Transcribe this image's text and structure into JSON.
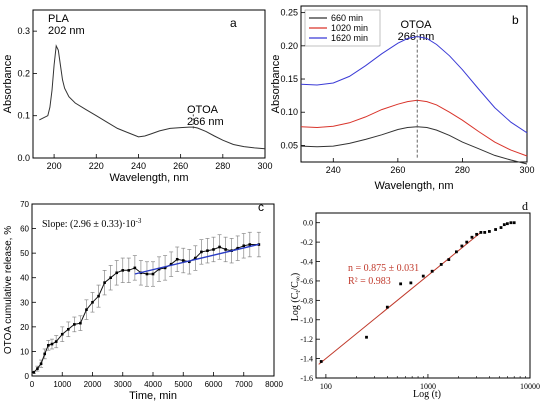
{
  "chart_data": [
    {
      "panel": "a",
      "type": "line",
      "xlabel": "Wavelength, nm",
      "ylabel": "Absorbance",
      "xlim": [
        190,
        300
      ],
      "ylim": [
        0.0,
        0.35
      ],
      "xticks": [
        "200",
        "220",
        "240",
        "260",
        "280",
        "300"
      ],
      "yticks": [
        "0.0",
        "0.1",
        "0.2",
        "0.3"
      ],
      "series": [
        {
          "color": "#333333",
          "x": [
            193,
            195,
            197,
            198,
            199,
            200,
            201,
            202,
            203,
            204,
            205,
            207,
            210,
            215,
            220,
            225,
            230,
            235,
            240,
            243,
            246,
            250,
            255,
            260,
            264,
            266,
            268,
            272,
            276,
            280,
            285,
            290,
            295,
            300
          ],
          "y": [
            0.09,
            0.095,
            0.1,
            0.12,
            0.16,
            0.22,
            0.265,
            0.255,
            0.22,
            0.185,
            0.165,
            0.145,
            0.13,
            0.115,
            0.1,
            0.085,
            0.07,
            0.06,
            0.05,
            0.052,
            0.057,
            0.064,
            0.07,
            0.072,
            0.073,
            0.073,
            0.071,
            0.063,
            0.052,
            0.042,
            0.032,
            0.027,
            0.024,
            0.022
          ]
        }
      ],
      "annotations": [
        {
          "text": "PLA",
          "x": 202
        },
        {
          "text": "202 nm",
          "x": 202
        },
        {
          "text": "OTOA",
          "x": 266
        },
        {
          "text": "266 nm",
          "x": 266
        }
      ],
      "marker_line_x": 266
    },
    {
      "panel": "b",
      "type": "line",
      "xlabel": "Wavelength, nm",
      "ylabel": "Absorbance",
      "xlim": [
        230,
        300
      ],
      "ylim": [
        0.025,
        0.26
      ],
      "xticks": [
        "240",
        "260",
        "280",
        "300"
      ],
      "yticks": [
        "0.05",
        "0.10",
        "0.15",
        "0.20",
        "0.25"
      ],
      "legend_position": "top-left",
      "series": [
        {
          "name": "660 min",
          "color": "#333333",
          "x": [
            230,
            235,
            240,
            245,
            250,
            255,
            260,
            263,
            266,
            269,
            272,
            276,
            280,
            285,
            290,
            295,
            300
          ],
          "y": [
            0.049,
            0.048,
            0.049,
            0.053,
            0.059,
            0.066,
            0.074,
            0.077,
            0.078,
            0.077,
            0.073,
            0.065,
            0.055,
            0.045,
            0.035,
            0.028,
            0.022
          ]
        },
        {
          "name": "1020 min",
          "color": "#d9342b",
          "x": [
            230,
            235,
            240,
            245,
            250,
            255,
            260,
            263,
            266,
            269,
            272,
            276,
            280,
            285,
            290,
            295,
            300
          ],
          "y": [
            0.078,
            0.077,
            0.079,
            0.084,
            0.093,
            0.104,
            0.112,
            0.116,
            0.118,
            0.116,
            0.111,
            0.1,
            0.088,
            0.071,
            0.055,
            0.043,
            0.034
          ]
        },
        {
          "name": "1620 min",
          "color": "#3b3bd6",
          "x": [
            230,
            235,
            240,
            245,
            250,
            255,
            260,
            263,
            266,
            269,
            272,
            276,
            280,
            285,
            290,
            295,
            300
          ],
          "y": [
            0.142,
            0.141,
            0.144,
            0.154,
            0.17,
            0.188,
            0.204,
            0.211,
            0.214,
            0.211,
            0.202,
            0.185,
            0.164,
            0.135,
            0.107,
            0.085,
            0.069
          ]
        }
      ],
      "annotations": [
        {
          "text": "OTOA",
          "x": 266
        },
        {
          "text": "266 nm",
          "x": 266
        }
      ],
      "marker_line_x": 266
    },
    {
      "panel": "c",
      "type": "line",
      "xlabel": "Time, min",
      "ylabel": "OTOA cumulative release, %",
      "xlim": [
        0,
        8000
      ],
      "ylim": [
        0,
        70
      ],
      "xticks": [
        "0",
        "1000",
        "2000",
        "3000",
        "4000",
        "5000",
        "6000",
        "7000",
        "8000"
      ],
      "yticks": [
        "0",
        "10",
        "20",
        "30",
        "40",
        "50",
        "60",
        "70"
      ],
      "slope_text": "Slope: (2.96 ± 0.33)·10",
      "slope_exponent": "-3",
      "series": [
        {
          "color": "#111111",
          "x": [
            60,
            180,
            300,
            420,
            540,
            660,
            800,
            1000,
            1200,
            1400,
            1600,
            1800,
            2000,
            2200,
            2400,
            2600,
            2800,
            3000,
            3200,
            3400,
            3600,
            3800,
            4000,
            4200,
            4400,
            4600,
            4800,
            5000,
            5200,
            5400,
            5600,
            5800,
            6000,
            6200,
            6400,
            6600,
            6800,
            7000,
            7200,
            7500
          ],
          "y": [
            1.5,
            3,
            5,
            9,
            12.5,
            13,
            14,
            17,
            19,
            21,
            21.5,
            27,
            30,
            32.5,
            38,
            40,
            42,
            43,
            43,
            44,
            42,
            41.5,
            41.5,
            43.5,
            44,
            45.5,
            47.5,
            47,
            46.5,
            48,
            50.5,
            51,
            51.5,
            52.5,
            51.5,
            51,
            52,
            53,
            53.5,
            53.5
          ],
          "error": [
            0.5,
            1,
            1.5,
            2,
            2,
            2,
            2.5,
            3,
            3,
            3,
            3,
            4,
            4,
            4.5,
            5,
            5,
            5,
            5,
            5,
            5,
            5,
            5,
            5,
            5,
            5,
            5,
            5,
            5,
            5,
            5,
            5,
            5,
            5,
            5,
            5,
            5,
            5,
            5,
            5,
            5
          ]
        }
      ],
      "fit_line": {
        "color": "#2a3cc4",
        "x": [
          3400,
          7500
        ],
        "y": [
          41.5,
          53.6
        ]
      }
    },
    {
      "panel": "d",
      "type": "scatter",
      "xlabel": "Log (t)",
      "ylabel": "Log (Ct/C∞)",
      "xscale": "log",
      "xlim": [
        80,
        10000
      ],
      "ylim": [
        -1.6,
        0.1
      ],
      "xticks": [
        "100",
        "1000",
        "10000"
      ],
      "yticks": [
        "0.0",
        "-0.2",
        "-0.4",
        "-0.6",
        "-0.8",
        "-1.0",
        "-1.2",
        "-1.4",
        "-1.6"
      ],
      "fit_text": {
        "n": "n = 0.875 ± 0.031",
        "r2": "R² = 0.983"
      },
      "fit_color": "#c0392b",
      "series": [
        {
          "color": "#000000",
          "x": [
            90,
            250,
            400,
            540,
            680,
            900,
            1100,
            1350,
            1600,
            1900,
            2150,
            2400,
            2700,
            3000,
            3300,
            3600,
            4000,
            4600,
            5200,
            5600,
            6000,
            6500,
            7000
          ],
          "y": [
            -1.43,
            -1.18,
            -0.87,
            -0.63,
            -0.62,
            -0.55,
            -0.5,
            -0.43,
            -0.38,
            -0.3,
            -0.24,
            -0.2,
            -0.15,
            -0.12,
            -0.1,
            -0.1,
            -0.09,
            -0.07,
            -0.05,
            -0.02,
            -0.01,
            0.0,
            0.0
          ]
        }
      ],
      "fit_line": {
        "x": [
          85,
          3300
        ],
        "y": [
          -1.46,
          -0.1
        ]
      }
    }
  ]
}
